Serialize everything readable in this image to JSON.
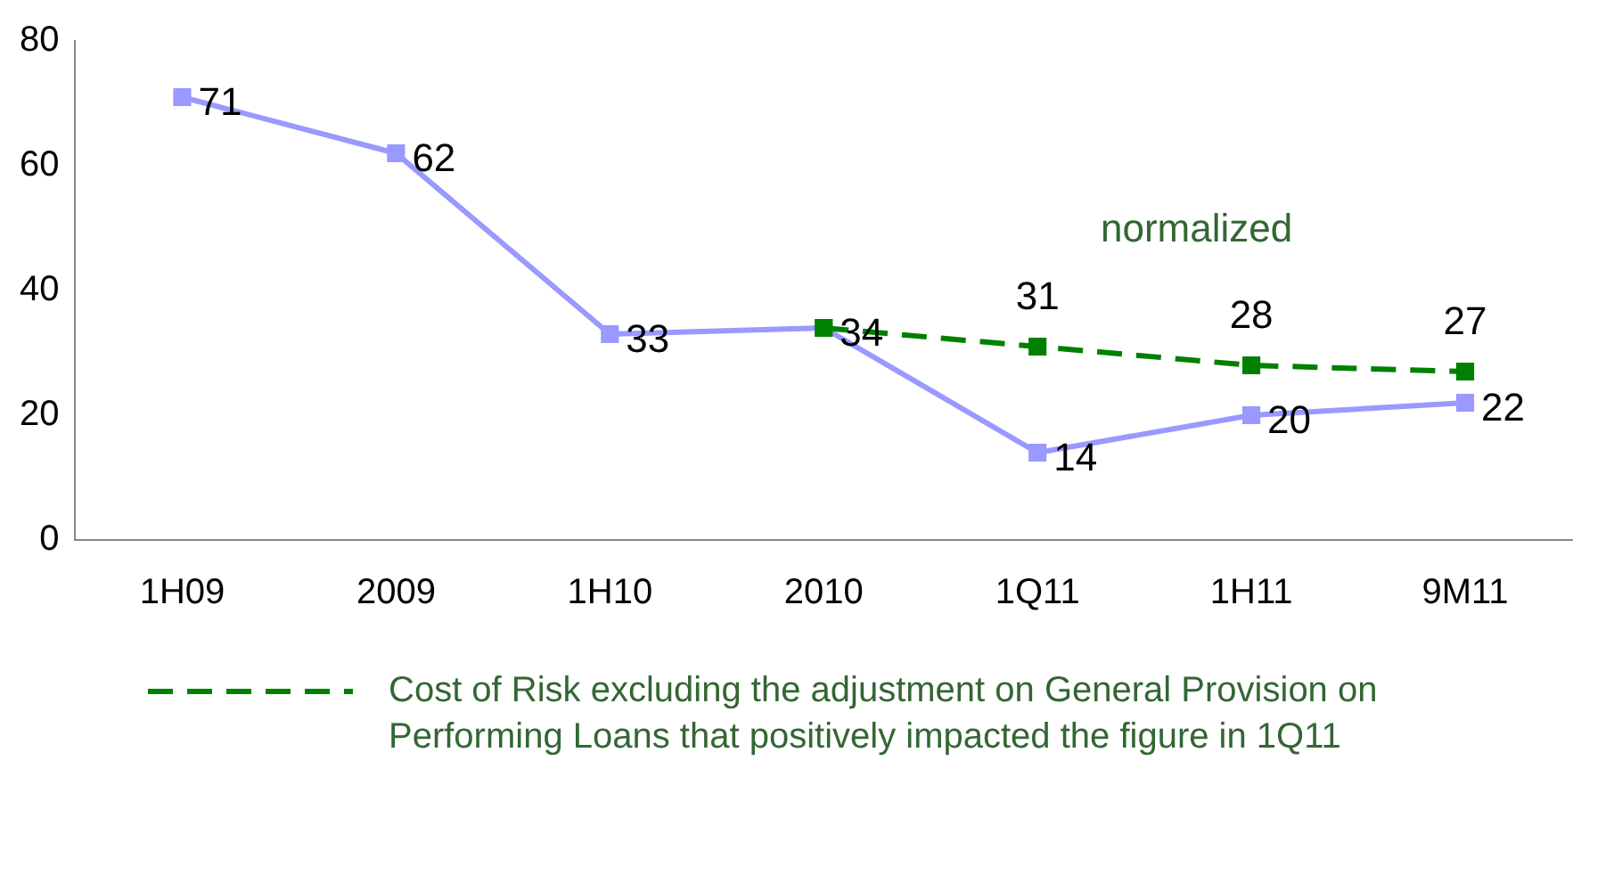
{
  "chart_data": {
    "type": "line",
    "categories": [
      "1H09",
      "2009",
      "1H10",
      "2010",
      "1Q11",
      "1H11",
      "9M11"
    ],
    "series": [
      {
        "color": "#9999ff",
        "values": [
          71,
          62,
          33,
          34,
          14,
          20,
          22
        ],
        "value_labels": [
          "71",
          "62",
          "33",
          "34",
          "14",
          "20",
          "22"
        ],
        "line_style": "solid"
      },
      {
        "name": "Cost of Risk excluding the adjustment on General Provision on Performing Loans that positively impacted the figure in 1Q11",
        "color": "#008000",
        "values": [
          null,
          null,
          null,
          34,
          31,
          28,
          27
        ],
        "value_labels": [
          null,
          null,
          null,
          null,
          "31",
          "28",
          "27"
        ],
        "line_style": "dashed"
      }
    ],
    "ylim": [
      0,
      80
    ],
    "yticks": [
      0,
      20,
      40,
      60,
      80
    ],
    "grid": false,
    "marker": "square",
    "legend": "bottom",
    "annotations": [
      "normalized"
    ]
  }
}
